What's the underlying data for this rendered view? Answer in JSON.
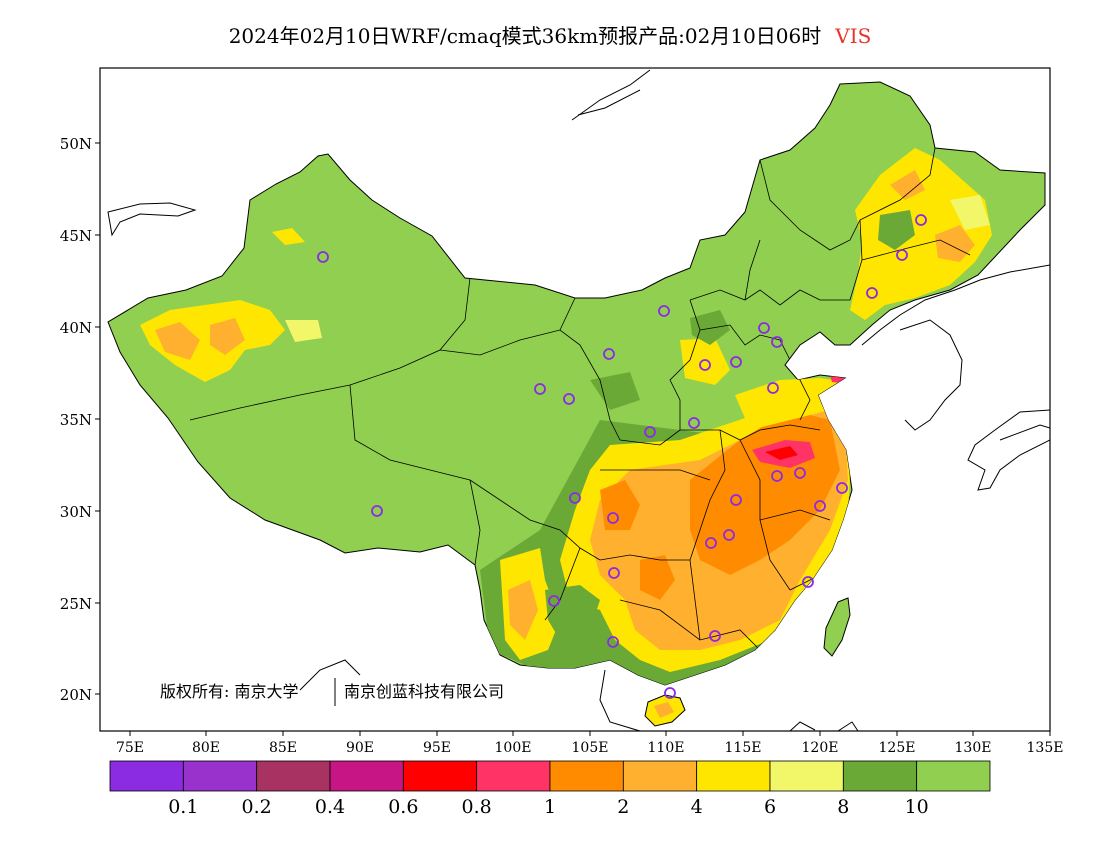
{
  "title": {
    "main": "2024年02月10日WRF/cmaq模式36km预报产品:02月10日06时",
    "variable": "VIS"
  },
  "map": {
    "lon_ticks": [
      "75E",
      "80E",
      "85E",
      "90E",
      "95E",
      "100E",
      "105E",
      "110E",
      "115E",
      "120E",
      "125E",
      "130E",
      "135E"
    ],
    "lat_ticks": [
      "20N",
      "25N",
      "30N",
      "35N",
      "40N",
      "45N",
      "50N"
    ],
    "copyright_a": "版权所有: 南京大学",
    "copyright_b": "南京创蓝科技有限公司",
    "colors": {
      "land_background": "#90cf50",
      "border": "#000000",
      "station_marker": "#8b2be2"
    }
  },
  "legend": {
    "colors": [
      "#8b2be2",
      "#9932cc",
      "#a83262",
      "#c71585",
      "#ff0000",
      "#ff3366",
      "#ff8c00",
      "#ffb02e",
      "#ffe600",
      "#f2f76a",
      "#6aa935",
      "#90cf50"
    ],
    "labels": [
      "0.1",
      "0.2",
      "0.4",
      "0.6",
      "0.8",
      "1",
      "2",
      "4",
      "6",
      "8",
      "10"
    ]
  }
}
